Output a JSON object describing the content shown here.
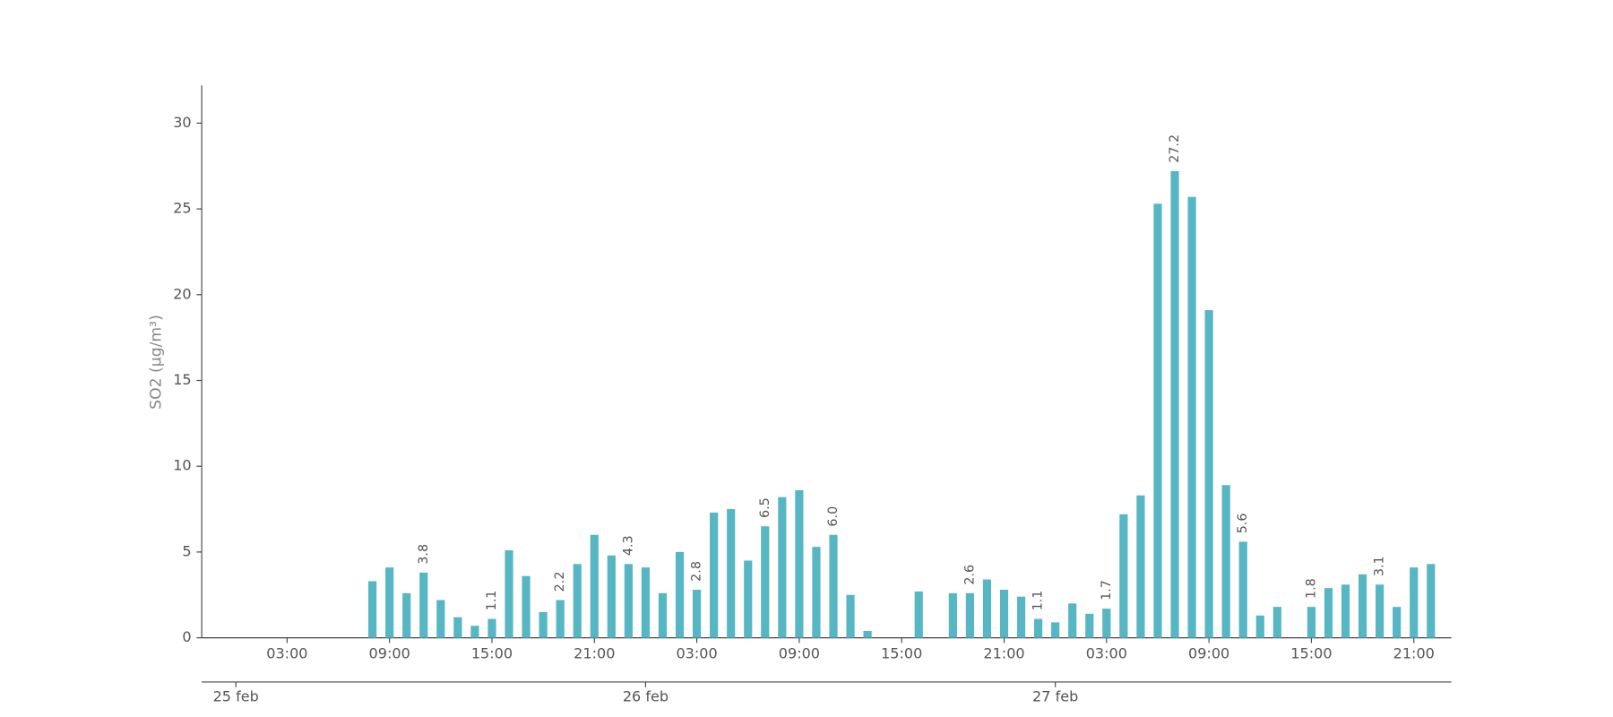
{
  "chart_data": {
    "type": "bar",
    "y_label": "SO2 (μg/m³)",
    "x": [
      8,
      9,
      10,
      11,
      12,
      13,
      14,
      15,
      16,
      17,
      18,
      19,
      20,
      21,
      22,
      23,
      24,
      25,
      26,
      27,
      28,
      29,
      30,
      31,
      32,
      33,
      34,
      35,
      36,
      37,
      38,
      39,
      40,
      41,
      42,
      43,
      44,
      45,
      46,
      47,
      48,
      49,
      50,
      51,
      52,
      53,
      54,
      55,
      56,
      57,
      58,
      59,
      60,
      61,
      62,
      63,
      64,
      65,
      66,
      67,
      68,
      69,
      70
    ],
    "values": [
      3.3,
      4.1,
      2.6,
      3.8,
      2.2,
      1.2,
      0.7,
      1.1,
      5.1,
      3.6,
      1.5,
      2.2,
      4.3,
      6.0,
      4.8,
      4.3,
      4.1,
      2.6,
      5.0,
      2.8,
      7.3,
      7.5,
      4.5,
      6.5,
      8.2,
      8.6,
      5.3,
      6.0,
      2.5,
      0.4,
      null,
      null,
      2.7,
      null,
      2.6,
      2.6,
      3.4,
      2.8,
      2.4,
      1.1,
      0.9,
      2.0,
      1.4,
      1.7,
      7.2,
      8.3,
      25.3,
      27.2,
      25.7,
      19.1,
      8.9,
      5.6,
      1.3,
      1.8,
      null,
      1.8,
      2.9,
      3.1,
      3.7,
      3.1,
      1.8,
      4.1,
      4.3
    ],
    "value_labels": [
      null,
      null,
      null,
      "3.8",
      null,
      null,
      null,
      "1.1",
      null,
      null,
      null,
      "2.2",
      null,
      null,
      null,
      "4.3",
      null,
      null,
      null,
      "2.8",
      null,
      null,
      null,
      "6.5",
      null,
      null,
      null,
      "6.0",
      null,
      null,
      null,
      null,
      null,
      null,
      null,
      "2.6",
      null,
      null,
      null,
      "1.1",
      null,
      null,
      null,
      "1.7",
      null,
      null,
      null,
      "27.2",
      null,
      null,
      null,
      "5.6",
      null,
      null,
      null,
      "1.8",
      null,
      null,
      null,
      "3.1",
      null,
      null,
      null
    ],
    "color": "#56b6c4",
    "xlim": [
      -2,
      71.2
    ],
    "xticks": [
      {
        "value": 3,
        "label": "03:00"
      },
      {
        "value": 9,
        "label": "09:00"
      },
      {
        "value": 15,
        "label": "15:00"
      },
      {
        "value": 21,
        "label": "21:00"
      },
      {
        "value": 27,
        "label": "03:00"
      },
      {
        "value": 33,
        "label": "09:00"
      },
      {
        "value": 39,
        "label": "15:00"
      },
      {
        "value": 45,
        "label": "21:00"
      },
      {
        "value": 51,
        "label": "03:00"
      },
      {
        "value": 57,
        "label": "09:00"
      },
      {
        "value": 63,
        "label": "15:00"
      },
      {
        "value": 69,
        "label": "21:00"
      }
    ],
    "xticks_dates": [
      {
        "value": 0,
        "label": "25 feb"
      },
      {
        "value": 24,
        "label": "26 feb"
      },
      {
        "value": 48,
        "label": "27 feb"
      }
    ],
    "ylim": [
      0,
      32.2
    ],
    "yticks": [
      0,
      5,
      10,
      15,
      20,
      25,
      30
    ]
  }
}
